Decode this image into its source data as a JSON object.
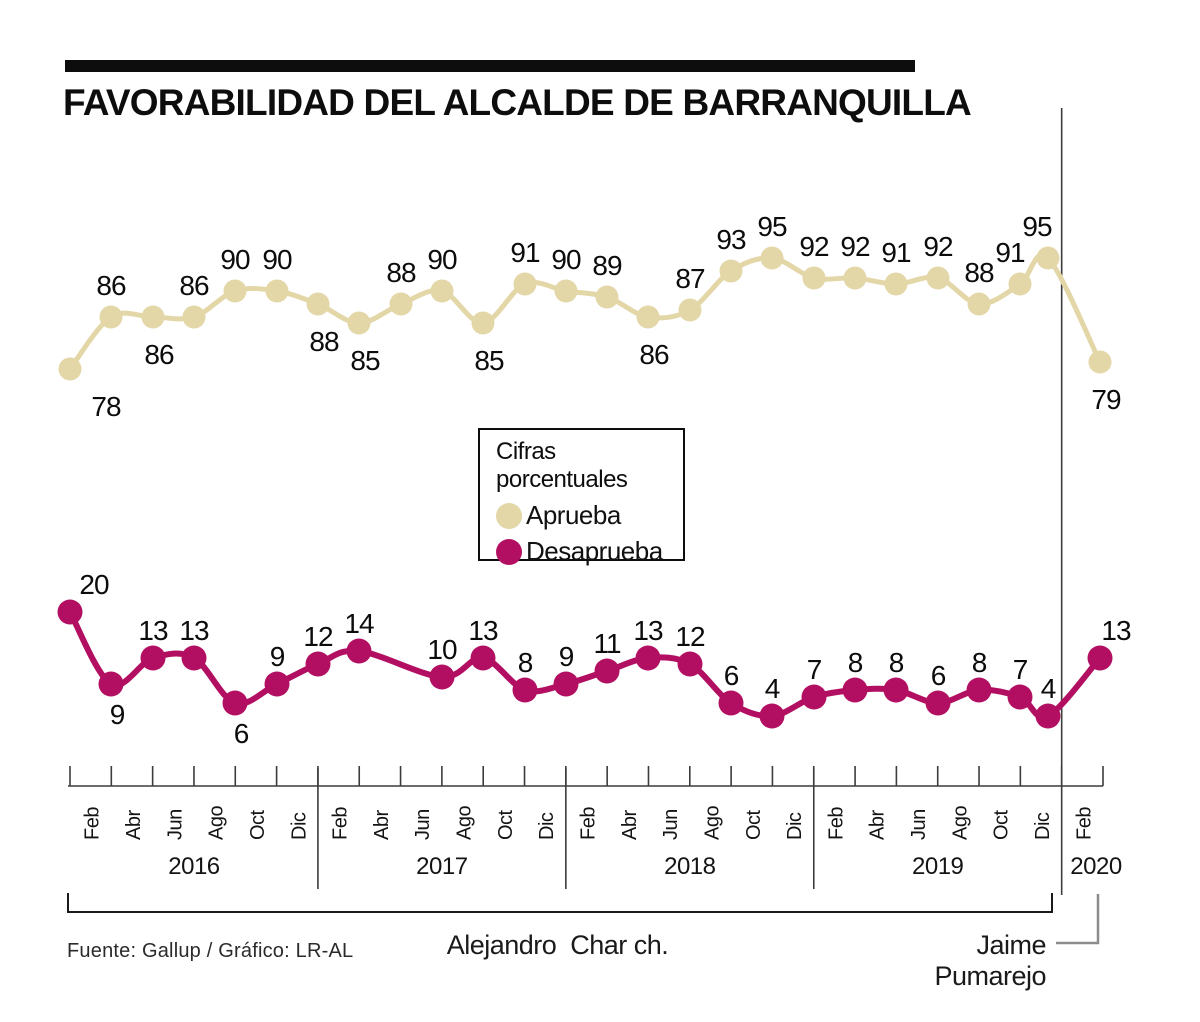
{
  "title": "FAVORABILIDAD DEL ALCALDE DE BARRANQUILLA",
  "legend": {
    "title": "Cifras porcentuales",
    "items": [
      {
        "label": "Aprueba",
        "color": "#e3d6a7"
      },
      {
        "label": "Desaprueba",
        "color": "#b30f62"
      }
    ]
  },
  "footer": {
    "source": "Fuente: Gallup / Gráfico: LR-AL",
    "char_label": "Alejandro  Char ch.",
    "pumarejo_label": "Jaime Pumarejo"
  },
  "chart_data": {
    "type": "line",
    "title": "FAVORABILIDAD DEL ALCALDE DE BARRANQUILLA",
    "unit": "percent",
    "legend_title": "Cifras porcentuales",
    "x_tick_months": [
      "Feb",
      "Abr",
      "Jun",
      "Ago",
      "Oct",
      "Dic",
      "Feb",
      "Abr",
      "Jun",
      "Ago",
      "Oct",
      "Dic",
      "Feb",
      "Abr",
      "Jun",
      "Ago",
      "Oct",
      "Dic",
      "Feb",
      "Abr",
      "Jun",
      "Ago",
      "Oct",
      "Dic",
      "Feb"
    ],
    "x_years": [
      {
        "label": "2016",
        "from_tick": 0,
        "to_tick": 6
      },
      {
        "label": "2017",
        "from_tick": 6,
        "to_tick": 12
      },
      {
        "label": "2018",
        "from_tick": 12,
        "to_tick": 18
      },
      {
        "label": "2019",
        "from_tick": 18,
        "to_tick": 24
      },
      {
        "label": "2020",
        "from_tick": 24,
        "to_tick": 25
      }
    ],
    "series": [
      {
        "name": "Aprueba",
        "color": "#e3d6a7",
        "values": [
          78,
          86,
          86,
          86,
          90,
          90,
          88,
          85,
          88,
          90,
          85,
          91,
          90,
          89,
          86,
          87,
          93,
          95,
          92,
          92,
          91,
          92,
          88,
          91,
          95,
          79
        ],
        "label_side": [
          "below",
          "above",
          "below",
          "above",
          "above",
          "above",
          "below",
          "below",
          "above",
          "above",
          "below",
          "above",
          "above",
          "above",
          "below",
          "above",
          "above",
          "above",
          "above",
          "above",
          "above",
          "above",
          "above",
          "above",
          "above",
          "below"
        ]
      },
      {
        "name": "Desaprueba",
        "color": "#b30f62",
        "values": [
          20,
          9,
          13,
          13,
          6,
          9,
          12,
          14,
          null,
          10,
          13,
          8,
          9,
          11,
          13,
          12,
          6,
          4,
          7,
          8,
          8,
          6,
          8,
          7,
          4,
          13
        ],
        "label_side": [
          "above",
          "below",
          "above",
          "above",
          "below",
          "above",
          "above",
          "above",
          null,
          "above",
          "above",
          "above",
          "above",
          "above",
          "above",
          "above",
          "above",
          "above",
          "above",
          "above",
          "above",
          "above",
          "above",
          "above",
          "above",
          "above"
        ]
      }
    ],
    "annotations": {
      "mayor_terms": [
        {
          "label": "Alejandro  Char ch.",
          "from_tick": 0,
          "to_tick": 24
        },
        {
          "label": "Jaime Pumarejo",
          "from_tick": 24,
          "to_tick": 25
        }
      ],
      "transition_divider_tick": 24
    },
    "source": "Fuente: Gallup / Gráfico: LR-AL"
  }
}
